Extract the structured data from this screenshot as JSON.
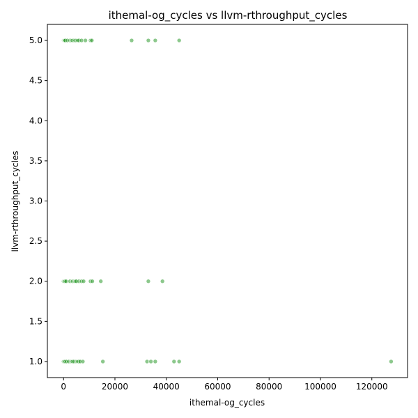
{
  "chart_data": {
    "type": "scatter",
    "title": "ithemal-og_cycles vs llvm-rthroughput_cycles",
    "xlabel": "ithemal-og_cycles",
    "ylabel": "llvm-rthroughput_cycles",
    "xlim": [
      -6300,
      133900
    ],
    "ylim": [
      0.8,
      5.2
    ],
    "xticks": [
      0,
      20000,
      40000,
      60000,
      80000,
      100000,
      120000
    ],
    "xtick_labels": [
      "0",
      "20000",
      "40000",
      "60000",
      "80000",
      "100000",
      "120000"
    ],
    "yticks": [
      1.0,
      1.5,
      2.0,
      2.5,
      3.0,
      3.5,
      4.0,
      4.5,
      5.0
    ],
    "ytick_labels": [
      "1.0",
      "1.5",
      "2.0",
      "2.5",
      "3.0",
      "3.5",
      "4.0",
      "4.5",
      "5.0"
    ],
    "grid": false,
    "marker_color": "#2e9a2e",
    "series": [
      {
        "points": [
          {
            "x": 0,
            "y": 5
          },
          {
            "x": 200,
            "y": 5
          },
          {
            "x": 400,
            "y": 5
          },
          {
            "x": 700,
            "y": 5
          },
          {
            "x": 1500,
            "y": 5
          },
          {
            "x": 2500,
            "y": 5
          },
          {
            "x": 3000,
            "y": 5
          },
          {
            "x": 3500,
            "y": 5
          },
          {
            "x": 4000,
            "y": 5
          },
          {
            "x": 4500,
            "y": 5
          },
          {
            "x": 5000,
            "y": 5
          },
          {
            "x": 5500,
            "y": 5
          },
          {
            "x": 6000,
            "y": 5
          },
          {
            "x": 7000,
            "y": 5
          },
          {
            "x": 8500,
            "y": 5
          },
          {
            "x": 10500,
            "y": 5
          },
          {
            "x": 11000,
            "y": 5
          },
          {
            "x": 26500,
            "y": 5
          },
          {
            "x": 33000,
            "y": 5
          },
          {
            "x": 35700,
            "y": 5
          },
          {
            "x": 45000,
            "y": 5
          },
          {
            "x": 0,
            "y": 2
          },
          {
            "x": 300,
            "y": 2
          },
          {
            "x": 600,
            "y": 2
          },
          {
            "x": 1000,
            "y": 2
          },
          {
            "x": 2500,
            "y": 2
          },
          {
            "x": 3500,
            "y": 2
          },
          {
            "x": 4200,
            "y": 2
          },
          {
            "x": 4600,
            "y": 2
          },
          {
            "x": 5000,
            "y": 2
          },
          {
            "x": 6000,
            "y": 2
          },
          {
            "x": 7000,
            "y": 2
          },
          {
            "x": 7800,
            "y": 2
          },
          {
            "x": 10500,
            "y": 2
          },
          {
            "x": 11200,
            "y": 2
          },
          {
            "x": 14500,
            "y": 2
          },
          {
            "x": 33000,
            "y": 2
          },
          {
            "x": 38500,
            "y": 2
          },
          {
            "x": 0,
            "y": 1
          },
          {
            "x": 300,
            "y": 1
          },
          {
            "x": 700,
            "y": 1
          },
          {
            "x": 1200,
            "y": 1
          },
          {
            "x": 2000,
            "y": 1
          },
          {
            "x": 3000,
            "y": 1
          },
          {
            "x": 3500,
            "y": 1
          },
          {
            "x": 4000,
            "y": 1
          },
          {
            "x": 5000,
            "y": 1
          },
          {
            "x": 5500,
            "y": 1
          },
          {
            "x": 6000,
            "y": 1
          },
          {
            "x": 6500,
            "y": 1
          },
          {
            "x": 7500,
            "y": 1
          },
          {
            "x": 15300,
            "y": 1
          },
          {
            "x": 32500,
            "y": 1
          },
          {
            "x": 34000,
            "y": 1
          },
          {
            "x": 35700,
            "y": 1
          },
          {
            "x": 43000,
            "y": 1
          },
          {
            "x": 45000,
            "y": 1
          },
          {
            "x": 127500,
            "y": 1
          }
        ]
      }
    ]
  }
}
